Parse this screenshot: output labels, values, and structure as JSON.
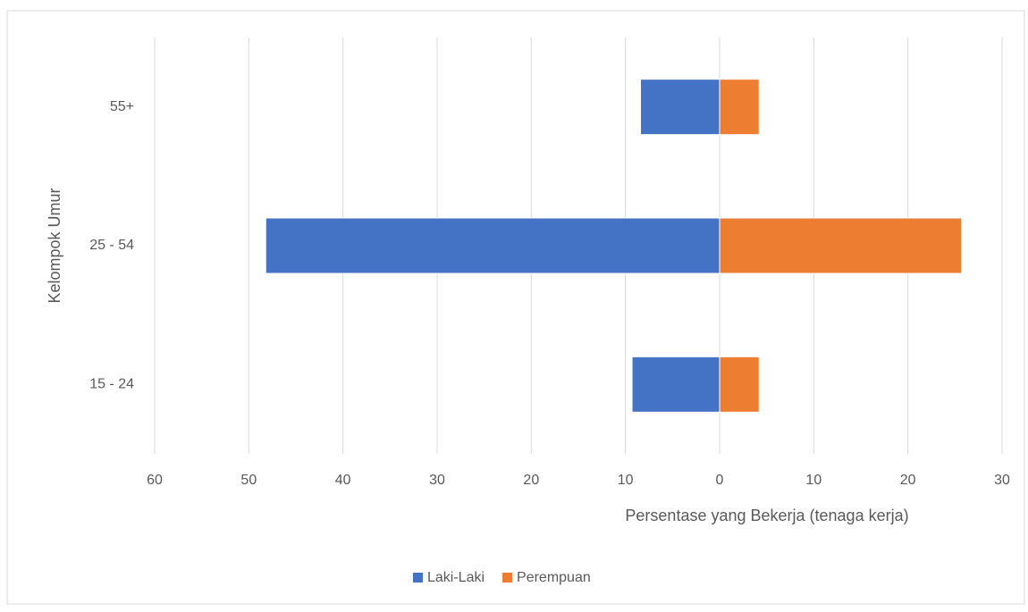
{
  "chart_data": {
    "type": "bar",
    "orientation": "horizontal",
    "stacked": true,
    "y_label": "Kelompok Umur",
    "x_label": "Persentase yang Bekerja (tenaga kerja)",
    "categories": [
      "15 - 24",
      "25 - 54",
      "55+"
    ],
    "series": [
      {
        "name": "Laki-Laki",
        "color": "#4472c4",
        "values": [
          -9.3,
          -48.2,
          -8.4
        ]
      },
      {
        "name": "Perempuan",
        "color": "#ed7d31",
        "values": [
          4.2,
          25.7,
          4.2
        ]
      }
    ],
    "xlim": [
      -60,
      30
    ],
    "xticks": [
      {
        "value": -60,
        "label": "60"
      },
      {
        "value": -50,
        "label": "50"
      },
      {
        "value": -40,
        "label": "40"
      },
      {
        "value": -30,
        "label": "30"
      },
      {
        "value": -20,
        "label": "20"
      },
      {
        "value": -10,
        "label": "10"
      },
      0,
      10,
      20,
      30
    ],
    "grid": true,
    "legend": "bottom"
  }
}
